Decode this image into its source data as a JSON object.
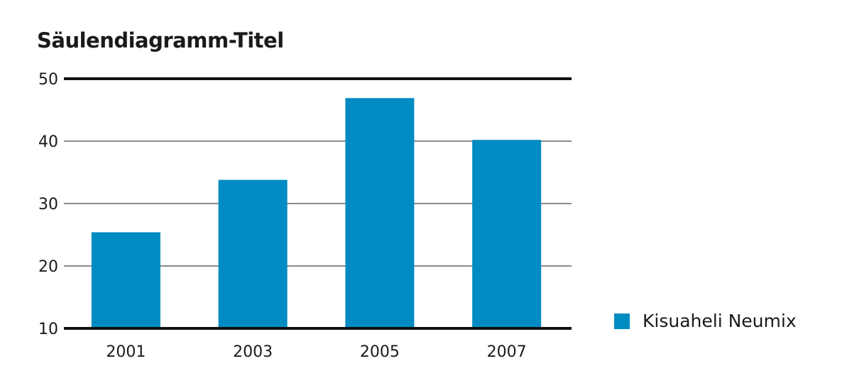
{
  "chart_data": {
    "type": "bar",
    "title": "Säulendiagramm-Titel",
    "categories": [
      "2001",
      "2003",
      "2005",
      "2007"
    ],
    "series": [
      {
        "name": "Kisuaheli Neumix",
        "values": [
          25.4,
          33.8,
          46.9,
          40.2
        ],
        "color": "#008bc2"
      }
    ],
    "ylim": [
      10,
      50
    ],
    "yticks": [
      10,
      20,
      30,
      40,
      50
    ],
    "grid": true,
    "legend_position": "bottom-right",
    "xlabel": "",
    "ylabel": ""
  }
}
